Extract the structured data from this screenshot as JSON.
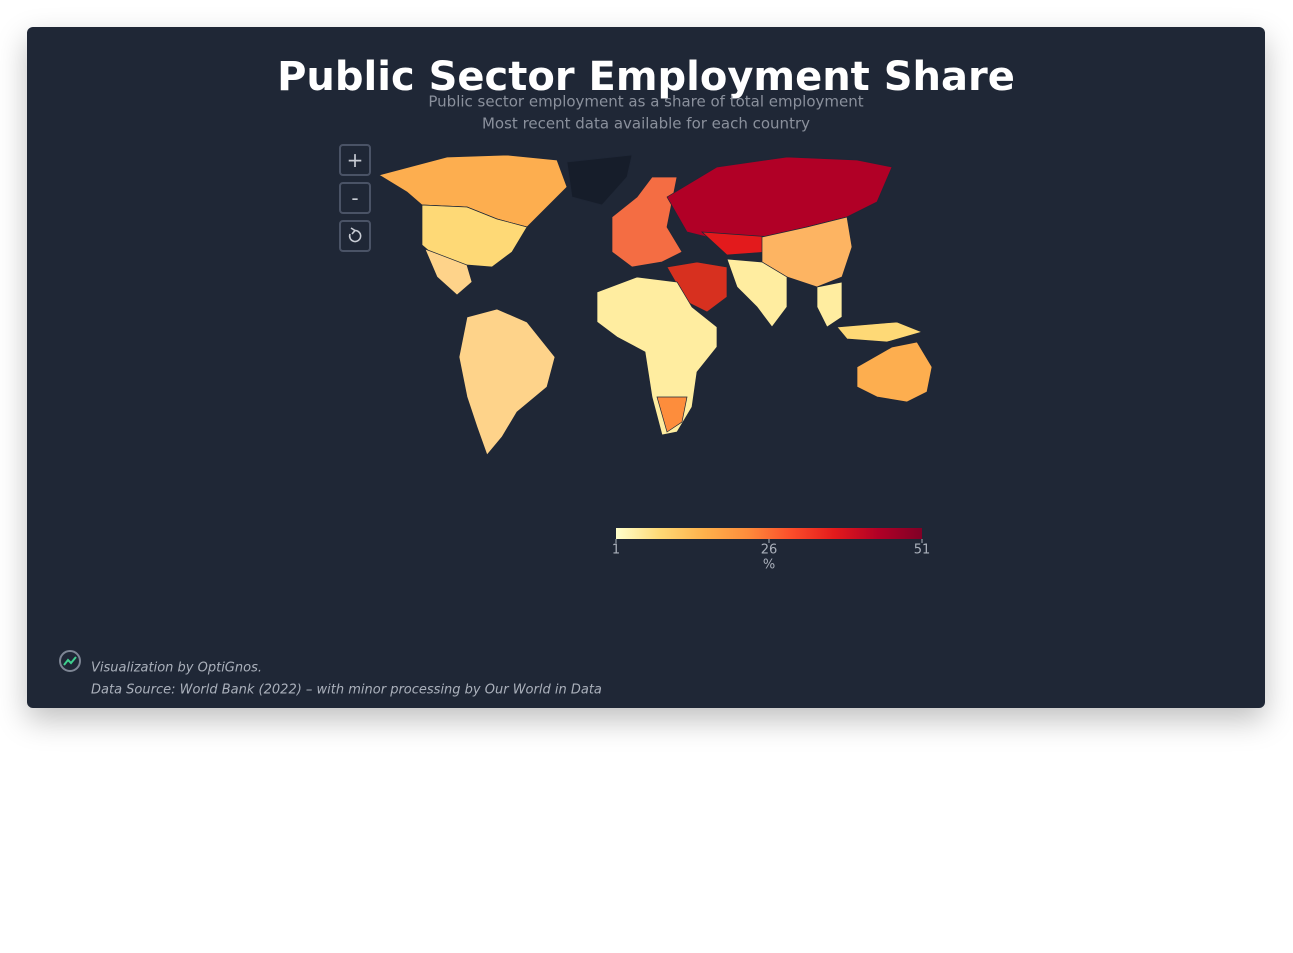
{
  "header": {
    "title": "Public Sector Employment Share",
    "subtitle_lines": [
      "Public sector employment as a share of total employment",
      "Most recent data available for each country"
    ]
  },
  "controls": {
    "zoom_in": "+",
    "zoom_out": "-"
  },
  "colorbar": {
    "range": [
      1,
      51
    ],
    "ticks": [
      1,
      26,
      51
    ],
    "title": "%",
    "colors": [
      "#ffffcc",
      "#fed976",
      "#feb24c",
      "#fd8d3c",
      "#fc4e2a",
      "#e31a1c",
      "#b10026",
      "#800026"
    ]
  },
  "footer": {
    "credit": "Visualization by OptiGnos.",
    "source": "Data Source: World Bank (2022) – with minor processing by Our World in Data"
  }
}
